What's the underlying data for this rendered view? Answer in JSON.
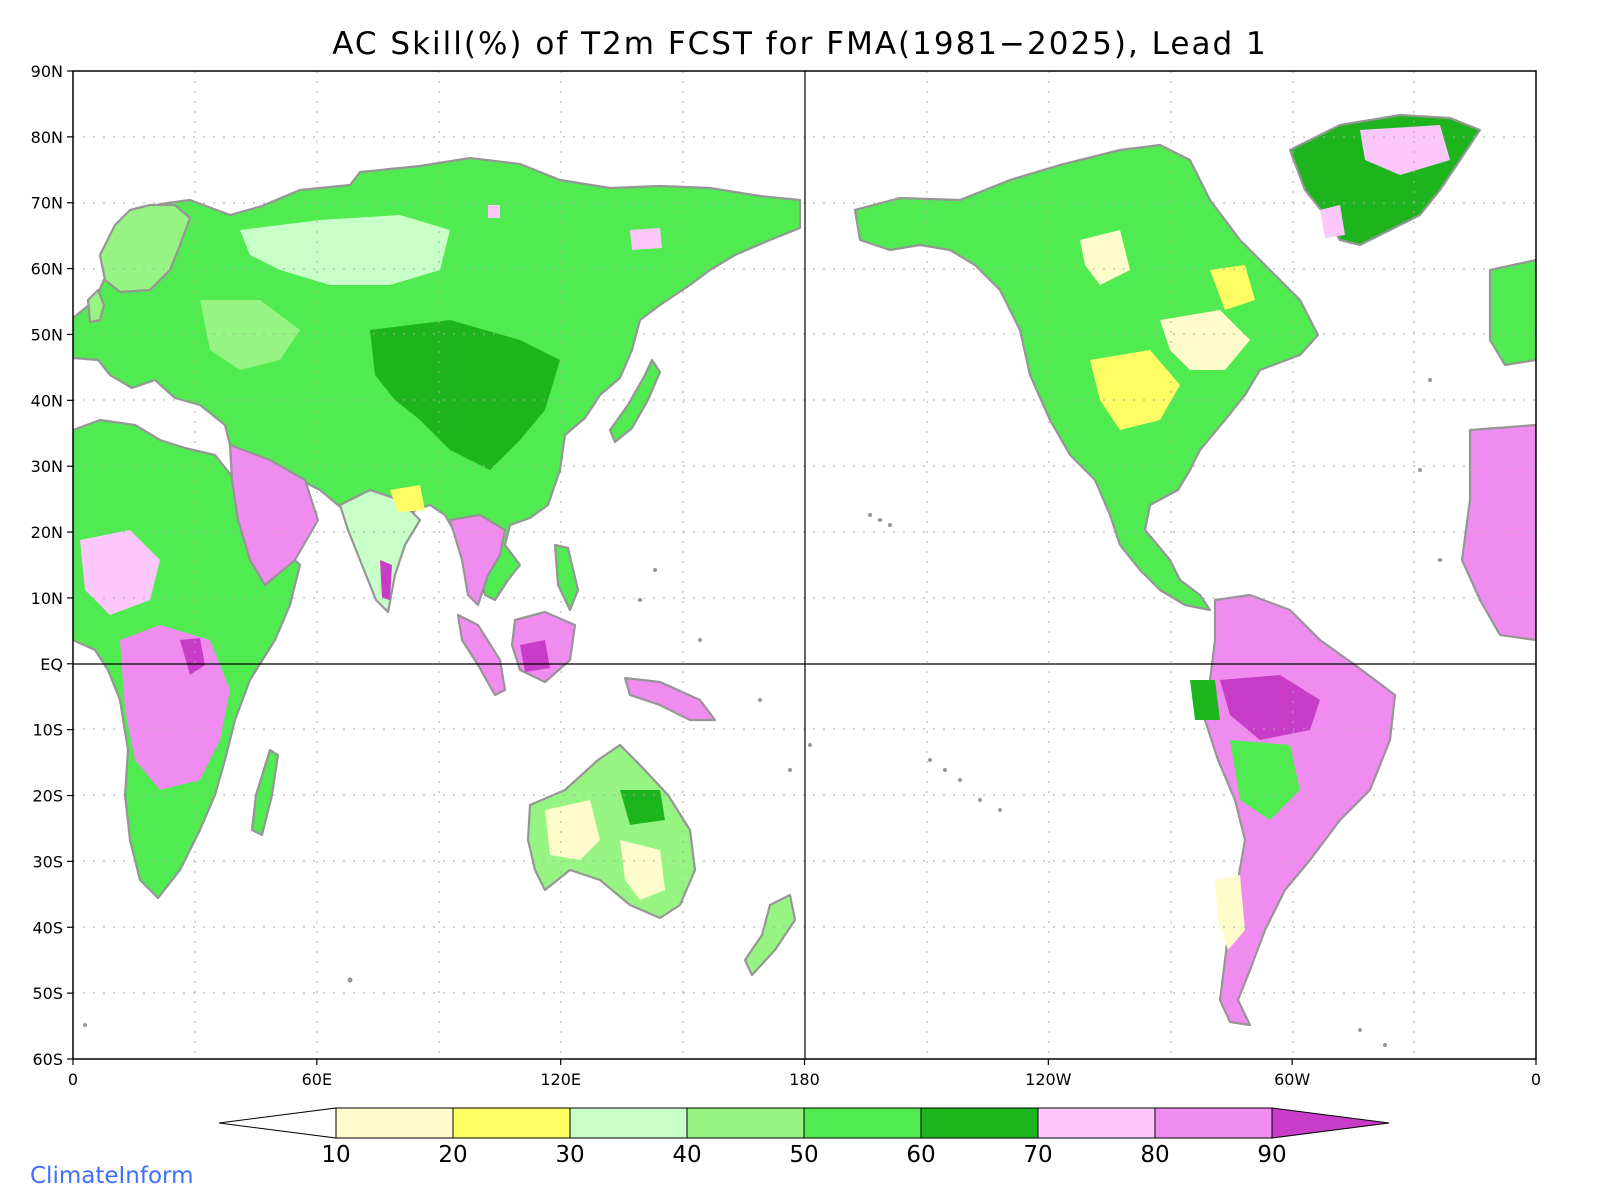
{
  "title": "AC Skill(%) of T2m FCST for FMA(1981−2025), Lead 1",
  "brand": "ClimateInform",
  "map": {
    "lat_labels": [
      "90N",
      "80N",
      "70N",
      "60N",
      "50N",
      "40N",
      "30N",
      "20N",
      "10N",
      "EQ",
      "10S",
      "20S",
      "30S",
      "40S",
      "50S",
      "60S"
    ],
    "lat_values": [
      90,
      80,
      70,
      60,
      50,
      40,
      30,
      20,
      10,
      0,
      -10,
      -20,
      -30,
      -40,
      -50,
      -60
    ],
    "lon_labels": [
      "0",
      "60E",
      "120E",
      "180",
      "120W",
      "60W",
      "0"
    ],
    "lon_values": [
      0,
      60,
      120,
      180,
      240,
      300,
      360
    ],
    "lat_range": [
      -60,
      90
    ],
    "lon_range": [
      0,
      360
    ],
    "grid": "dotted every 15 deg lon / 10 deg lat",
    "reference_lines": [
      "Equator",
      "180"
    ]
  },
  "colorbar": {
    "labels": [
      "10",
      "20",
      "30",
      "40",
      "50",
      "60",
      "70",
      "80",
      "90"
    ],
    "colors": [
      "#ffffff",
      "#fffccb",
      "#fefe64",
      "#c8fec8",
      "#96f582",
      "#50eb50",
      "#1eb41e",
      "#fcc8fc",
      "#f08cf0",
      "#c83cc8"
    ]
  },
  "colors": {
    "coast": "#969696",
    "lakes": "#000000",
    "ocean": "#ffffff"
  }
}
